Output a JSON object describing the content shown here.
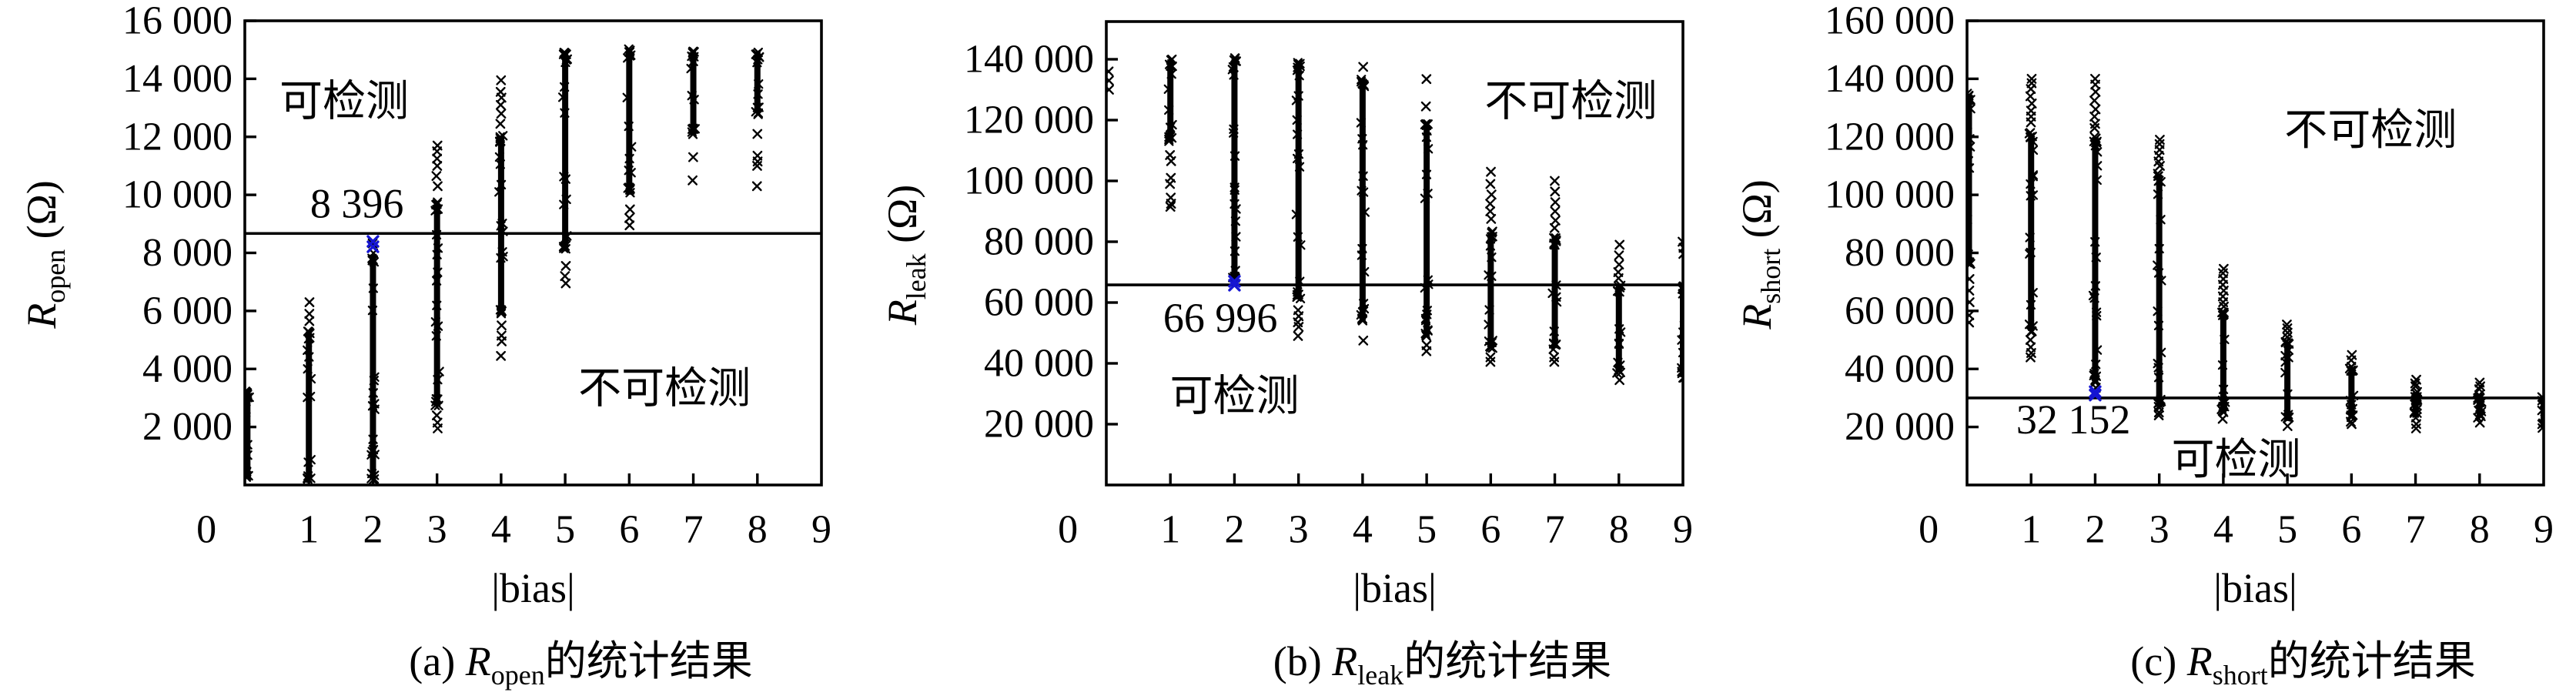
{
  "figure": {
    "background": "#ffffff"
  },
  "colors": {
    "marker": "#000000",
    "axis": "#000000",
    "highlight": "#1515d2"
  },
  "chart_data": [
    {
      "type": "scatter",
      "caption": {
        "prefix": "(a) ",
        "symbol": "R",
        "subscript": "open",
        "suffix": "的统计结果"
      },
      "ylabel": {
        "symbol": "R",
        "subscript": "open",
        "unit": " (Ω)"
      },
      "xlabel": "|bias|",
      "ylim": [
        0,
        16000
      ],
      "xlim": [
        0,
        9
      ],
      "y_ticks": [
        {
          "v": 2000,
          "label": "2 000"
        },
        {
          "v": 4000,
          "label": "4 000"
        },
        {
          "v": 6000,
          "label": "6 000"
        },
        {
          "v": 8000,
          "label": "8 000"
        },
        {
          "v": 10000,
          "label": "10 000"
        },
        {
          "v": 12000,
          "label": "12 000"
        },
        {
          "v": 14000,
          "label": "14 000"
        },
        {
          "v": 16000,
          "label": "16 000"
        }
      ],
      "x_ticks": [
        {
          "v": 0,
          "label": "0"
        },
        {
          "v": 1,
          "label": "1"
        },
        {
          "v": 2,
          "label": "2"
        },
        {
          "v": 3,
          "label": "3"
        },
        {
          "v": 4,
          "label": "4"
        },
        {
          "v": 5,
          "label": "5"
        },
        {
          "v": 6,
          "label": "6"
        },
        {
          "v": 7,
          "label": "7"
        },
        {
          "v": 8,
          "label": "8"
        },
        {
          "v": 9,
          "label": "9"
        }
      ],
      "threshold": {
        "line_value": 8670,
        "label": "8 396",
        "label_bias": 1.75,
        "label_value": 9700,
        "marker_bias": 2,
        "marker_values": [
          8396,
          8210
        ]
      },
      "regions": [
        {
          "text": "可检测",
          "bias": 1.55,
          "value": 13200
        },
        {
          "text": "不可检测",
          "bias": 6.55,
          "value": 3300
        }
      ],
      "columns": [
        {
          "bias": 0.04,
          "dense": [
            100,
            3300
          ],
          "outliers": []
        },
        {
          "bias": 1,
          "dense": [
            80,
            5400
          ],
          "outliers": [
            5650,
            5900,
            6300
          ]
        },
        {
          "bias": 2,
          "dense": [
            80,
            8050
          ],
          "outliers": [
            8200,
            8330
          ]
        },
        {
          "bias": 3,
          "dense": [
            2600,
            9800
          ],
          "outliers": [
            1950,
            2150,
            2400,
            10300,
            10650,
            11000,
            11250,
            11500,
            11700
          ]
        },
        {
          "bias": 4,
          "dense": [
            5800,
            12100
          ],
          "outliers": [
            4450,
            4950,
            5150,
            5500,
            12450,
            12800,
            13100,
            13350,
            13550,
            13950
          ]
        },
        {
          "bias": 5,
          "dense": [
            7950,
            15000
          ],
          "outliers": [
            6950,
            7200,
            7550
          ]
        },
        {
          "bias": 6,
          "dense": [
            9900,
            15100
          ],
          "outliers": [
            8950,
            9200,
            9500
          ]
        },
        {
          "bias": 7,
          "dense": [
            11950,
            15000
          ],
          "outliers": [
            10500,
            11300
          ]
        },
        {
          "bias": 8,
          "dense": [
            12700,
            15050
          ],
          "outliers": [
            10300,
            11000,
            11150,
            11350,
            12100
          ]
        }
      ]
    },
    {
      "type": "scatter",
      "caption": {
        "prefix": "(b) ",
        "symbol": "R",
        "subscript": "leak",
        "suffix": "的统计结果"
      },
      "ylabel": {
        "symbol": "R",
        "subscript": "leak",
        "unit": " (Ω)"
      },
      "xlabel": "|bias|",
      "ylim": [
        0,
        152400
      ],
      "xlim": [
        0,
        9
      ],
      "y_ticks": [
        {
          "v": 20000,
          "label": "20 000"
        },
        {
          "v": 40000,
          "label": "40 000"
        },
        {
          "v": 60000,
          "label": "60 000"
        },
        {
          "v": 80000,
          "label": "80 000"
        },
        {
          "v": 100000,
          "label": "100 000"
        },
        {
          "v": 120000,
          "label": "120 000"
        },
        {
          "v": 140000,
          "label": "140 000"
        }
      ],
      "x_ticks": [
        {
          "v": 0,
          "label": "0"
        },
        {
          "v": 1,
          "label": "1"
        },
        {
          "v": 2,
          "label": "2"
        },
        {
          "v": 3,
          "label": "3"
        },
        {
          "v": 4,
          "label": "4"
        },
        {
          "v": 5,
          "label": "5"
        },
        {
          "v": 6,
          "label": "6"
        },
        {
          "v": 7,
          "label": "7"
        },
        {
          "v": 8,
          "label": "8"
        },
        {
          "v": 9,
          "label": "9"
        }
      ],
      "threshold": {
        "line_value": 65800,
        "label": "66 996",
        "label_bias": 1.78,
        "label_value": 55000,
        "marker_bias": 2,
        "marker_values": [
          66996,
          65700
        ]
      },
      "regions": [
        {
          "text": "不可检测",
          "bias": 7.25,
          "value": 126000
        },
        {
          "text": "可检测",
          "bias": 2.0,
          "value": 29000
        }
      ],
      "columns": [
        {
          "bias": 0.03,
          "dense": null,
          "outliers": [
            130000,
            133000,
            136000
          ]
        },
        {
          "bias": 1,
          "dense": [
            112000,
            141000
          ],
          "outliers": [
            91500,
            92500,
            94500,
            99000,
            101000,
            106500,
            108500
          ]
        },
        {
          "bias": 2,
          "dense": [
            67200,
            141000
          ],
          "outliers": []
        },
        {
          "bias": 3,
          "dense": [
            60000,
            140500
          ],
          "outliers": [
            49000,
            52000,
            53500,
            55500,
            57500
          ]
        },
        {
          "bias": 4,
          "dense": [
            53000,
            134500
          ],
          "outliers": [
            47500,
            137500
          ]
        },
        {
          "bias": 5,
          "dense": [
            48000,
            119500
          ],
          "outliers": [
            44000,
            46000,
            124500,
            133500
          ]
        },
        {
          "bias": 6,
          "dense": [
            44000,
            84000
          ],
          "outliers": [
            40500,
            42000,
            87500,
            90000,
            92500,
            95500,
            99000,
            103000
          ]
        },
        {
          "bias": 7,
          "dense": [
            44000,
            82500
          ],
          "outliers": [
            40500,
            42000,
            84500,
            87000,
            90000,
            93000,
            96500,
            100000
          ]
        },
        {
          "bias": 8,
          "dense": [
            36000,
            66500
          ],
          "outliers": [
            34500,
            68000,
            70000,
            72500,
            75500,
            79000
          ]
        },
        {
          "bias": 9,
          "dense": [
            34500,
            66000
          ],
          "outliers": [
            76000,
            78000,
            80000
          ]
        }
      ]
    },
    {
      "type": "scatter",
      "caption": {
        "prefix": "(c) ",
        "symbol": "R",
        "subscript": "short",
        "suffix": "的统计结果"
      },
      "ylabel": {
        "symbol": "R",
        "subscript": "short",
        "unit": " (Ω)"
      },
      "xlabel": "|bias|",
      "ylim": [
        0,
        160000
      ],
      "xlim": [
        0,
        9
      ],
      "y_ticks": [
        {
          "v": 20000,
          "label": "20 000"
        },
        {
          "v": 40000,
          "label": "40 000"
        },
        {
          "v": 60000,
          "label": "60 000"
        },
        {
          "v": 80000,
          "label": "80 000"
        },
        {
          "v": 100000,
          "label": "100 000"
        },
        {
          "v": 120000,
          "label": "120 000"
        },
        {
          "v": 140000,
          "label": "140 000"
        },
        {
          "v": 160000,
          "label": "160 000"
        }
      ],
      "x_ticks": [
        {
          "v": 0,
          "label": "0"
        },
        {
          "v": 1,
          "label": "1"
        },
        {
          "v": 2,
          "label": "2"
        },
        {
          "v": 3,
          "label": "3"
        },
        {
          "v": 4,
          "label": "4"
        },
        {
          "v": 5,
          "label": "5"
        },
        {
          "v": 6,
          "label": "6"
        },
        {
          "v": 7,
          "label": "7"
        },
        {
          "v": 8,
          "label": "8"
        },
        {
          "v": 9,
          "label": "9"
        }
      ],
      "threshold": {
        "line_value": 30000,
        "label": "32 152",
        "label_bias": 1.66,
        "label_value": 22600,
        "marker_bias": 2,
        "marker_values": [
          32152,
          31000
        ]
      },
      "regions": [
        {
          "text": "不可检测",
          "bias": 6.3,
          "value": 122000
        },
        {
          "text": "可检测",
          "bias": 4.2,
          "value": 8500
        }
      ],
      "columns": [
        {
          "bias": 0.03,
          "dense": [
            75000,
            136000
          ],
          "outliers": [
            56000,
            58500,
            63000,
            67000,
            71000
          ]
        },
        {
          "bias": 1,
          "dense": [
            52000,
            122000
          ],
          "outliers": [
            44000,
            45500,
            47500,
            50000,
            125000,
            127000,
            129000,
            131500,
            134000,
            136500,
            138500,
            140000
          ]
        },
        {
          "bias": 2,
          "dense": [
            34500,
            121000
          ],
          "outliers": [
            33500,
            123000,
            124500,
            127000,
            129500,
            132500,
            135500,
            138000,
            140000
          ]
        },
        {
          "bias": 3,
          "dense": [
            26000,
            108000
          ],
          "outliers": [
            24000,
            25000,
            110000,
            111500,
            113500,
            115500,
            117500,
            119000
          ]
        },
        {
          "bias": 4,
          "dense": [
            23500,
            60500
          ],
          "outliers": [
            22800,
            61500,
            63000,
            65000,
            67000,
            69000,
            71000,
            73000,
            74500
          ]
        },
        {
          "bias": 5,
          "dense": [
            21000,
            50000
          ],
          "outliers": [
            20300,
            51000,
            52500,
            54000,
            55300
          ]
        },
        {
          "bias": 6,
          "dense": [
            22500,
            41500
          ],
          "outliers": [
            21000,
            21800,
            43000,
            44800
          ]
        },
        {
          "bias": 7,
          "dense": [
            22500,
            33000
          ],
          "outliers": [
            19500,
            21000,
            34000,
            35000,
            36300
          ]
        },
        {
          "bias": 8,
          "dense": [
            22500,
            32000
          ],
          "outliers": [
            21500,
            33000,
            34000,
            35300
          ]
        },
        {
          "bias": 9,
          "dense": [
            19000,
            31500
          ],
          "outliers": []
        }
      ]
    }
  ]
}
